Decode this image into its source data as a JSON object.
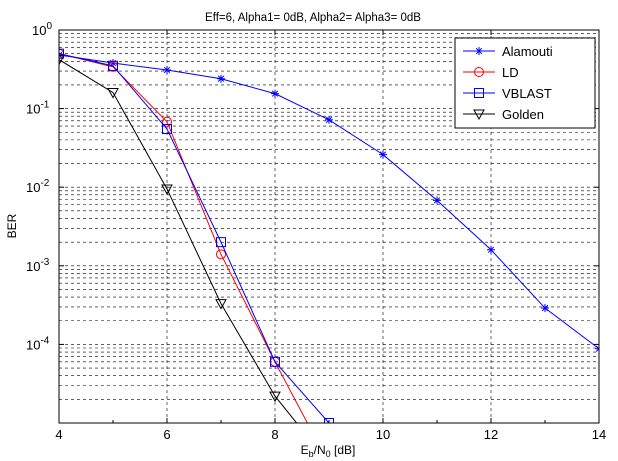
{
  "chart_data": {
    "type": "line",
    "title": "Eff=6, Alpha1= 0dB, Alpha2= Alpha3= 0dB",
    "xlabel": {
      "main": "E",
      "sub1": "b",
      "mid": "/N",
      "sub2": "0",
      "tail": " [dB]"
    },
    "ylabel": "BER",
    "xlim": [
      4,
      14
    ],
    "ylim": [
      1e-05,
      1
    ],
    "yscale": "log",
    "grid": true,
    "legend_position": "top-right",
    "x_ticks": [
      4,
      6,
      8,
      10,
      12,
      14
    ],
    "x_tick_labels": [
      "4",
      "6",
      "8",
      "10",
      "12",
      "14"
    ],
    "y_ticks": [
      {
        "base": "10",
        "exp": "0",
        "value": 1
      },
      {
        "base": "10",
        "exp": "-1",
        "value": 0.1
      },
      {
        "base": "10",
        "exp": "-2",
        "value": 0.01
      },
      {
        "base": "10",
        "exp": "-3",
        "value": 0.001
      },
      {
        "base": "10",
        "exp": "-4",
        "value": 0.0001
      }
    ],
    "series": [
      {
        "name": "Alamouti",
        "color": "#0000ff",
        "marker": "star",
        "x": [
          4,
          5,
          6,
          7,
          8,
          9,
          10,
          11,
          12,
          13,
          14
        ],
        "y": [
          0.48,
          0.38,
          0.31,
          0.24,
          0.155,
          0.072,
          0.026,
          0.0068,
          0.0016,
          0.00029,
          8.8e-05
        ]
      },
      {
        "name": "LD",
        "color": "#ff0000",
        "marker": "circle",
        "x": [
          4,
          5,
          6,
          7,
          8,
          8.6
        ],
        "y": [
          0.5,
          0.34,
          0.068,
          0.0014,
          6e-05,
          1e-05
        ]
      },
      {
        "name": "VBLAST",
        "color": "#0000ff",
        "marker": "square",
        "x": [
          4,
          5,
          6,
          7,
          8,
          9
        ],
        "y": [
          0.5,
          0.35,
          0.055,
          0.002,
          6e-05,
          1e-05
        ]
      },
      {
        "name": "Golden",
        "color": "#000000",
        "marker": "triangle-down",
        "x": [
          4,
          5,
          6,
          7,
          8,
          8.4
        ],
        "y": [
          0.42,
          0.16,
          0.0095,
          0.00033,
          2.2e-05,
          1e-05
        ]
      }
    ]
  }
}
